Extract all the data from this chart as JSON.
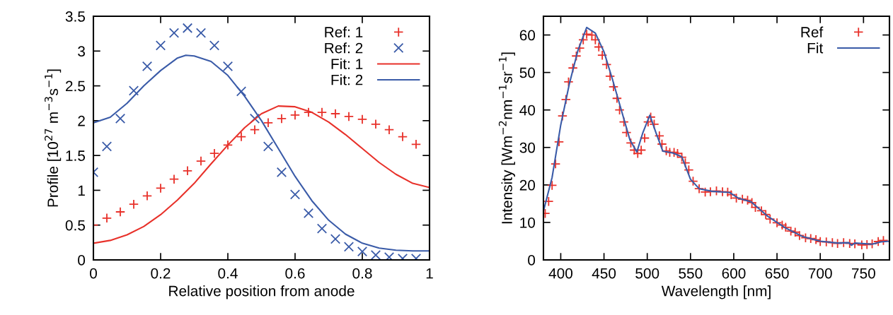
{
  "chart_data": [
    {
      "type": "scatter",
      "xlabel": "Relative position from anode",
      "ylabel": "Profile [10$^{27}$ m$^{−3}$s$^{−1}$]",
      "xlim": [
        0,
        1
      ],
      "xticks": [
        0,
        0.2,
        0.4,
        0.6,
        0.8,
        1
      ],
      "ylim": [
        0,
        3.5
      ],
      "yticks": [
        0,
        0.5,
        1,
        1.5,
        2,
        2.5,
        3,
        3.5
      ],
      "grid": false,
      "legend": "top right",
      "series": [
        {
          "name": "Ref: 1",
          "marker": "plus",
          "color": "#e8312a",
          "x": [
            0,
            0.04,
            0.08,
            0.12,
            0.16,
            0.2,
            0.24,
            0.28,
            0.32,
            0.36,
            0.4,
            0.44,
            0.48,
            0.52,
            0.56,
            0.6,
            0.64,
            0.68,
            0.72,
            0.76,
            0.8,
            0.84,
            0.88,
            0.92,
            0.96
          ],
          "values": [
            0.5,
            0.6,
            0.69,
            0.8,
            0.92,
            1.03,
            1.16,
            1.28,
            1.42,
            1.53,
            1.65,
            1.77,
            1.87,
            1.97,
            2.03,
            2.08,
            2.12,
            2.12,
            2.1,
            2.06,
            2.02,
            1.95,
            1.87,
            1.77,
            1.66
          ]
        },
        {
          "name": "Ref: 2",
          "marker": "cross",
          "color": "#3a5ba8",
          "x": [
            0,
            0.04,
            0.08,
            0.12,
            0.16,
            0.2,
            0.24,
            0.28,
            0.32,
            0.36,
            0.4,
            0.44,
            0.48,
            0.52,
            0.56,
            0.6,
            0.64,
            0.68,
            0.72,
            0.76,
            0.8,
            0.84,
            0.88,
            0.92,
            0.96
          ],
          "values": [
            1.26,
            1.63,
            2.03,
            2.43,
            2.78,
            3.08,
            3.26,
            3.33,
            3.26,
            3.08,
            2.78,
            2.42,
            2.03,
            1.63,
            1.26,
            0.94,
            0.67,
            0.45,
            0.3,
            0.19,
            0.12,
            0.07,
            0.04,
            0.02,
            0.02
          ]
        },
        {
          "name": "Fit: 1",
          "type": "line",
          "marker": "none",
          "line_style": "solid",
          "color": "#e8312a",
          "x": [
            0,
            0.05,
            0.1,
            0.15,
            0.2,
            0.25,
            0.3,
            0.35,
            0.4,
            0.45,
            0.5,
            0.55,
            0.6,
            0.65,
            0.7,
            0.75,
            0.8,
            0.85,
            0.9,
            0.95,
            1
          ],
          "values": [
            0.24,
            0.28,
            0.36,
            0.48,
            0.65,
            0.86,
            1.1,
            1.38,
            1.65,
            1.9,
            2.1,
            2.21,
            2.2,
            2.12,
            1.98,
            1.8,
            1.6,
            1.4,
            1.23,
            1.1,
            1.04
          ]
        },
        {
          "name": "Fit: 2",
          "type": "line",
          "marker": "none",
          "line_style": "solid",
          "color": "#3a5ba8",
          "x": [
            0,
            0.05,
            0.1,
            0.15,
            0.2,
            0.25,
            0.275,
            0.3,
            0.35,
            0.4,
            0.45,
            0.5,
            0.55,
            0.6,
            0.65,
            0.7,
            0.75,
            0.8,
            0.85,
            0.9,
            0.95,
            1
          ],
          "values": [
            1.97,
            2.05,
            2.25,
            2.5,
            2.72,
            2.9,
            2.94,
            2.93,
            2.85,
            2.65,
            2.35,
            2.0,
            1.6,
            1.2,
            0.85,
            0.57,
            0.37,
            0.24,
            0.17,
            0.14,
            0.13,
            0.13
          ]
        }
      ]
    },
    {
      "type": "scatter",
      "xlabel": "Wavelength [nm]",
      "ylabel": "Intensity [Wm$^{−2}$nm$^{−1}$sr$^{−1}$]",
      "xlim": [
        380,
        780
      ],
      "xticks": [
        400,
        450,
        500,
        550,
        600,
        650,
        700,
        750
      ],
      "ylim": [
        0,
        65
      ],
      "yticks": [
        0,
        10,
        20,
        30,
        40,
        50,
        60
      ],
      "grid": false,
      "legend": "top right",
      "series": [
        {
          "name": "Ref",
          "marker": "plus",
          "color": "#e8312a",
          "x": [
            382,
            386,
            390,
            394,
            398,
            402,
            406,
            409,
            414,
            418,
            422,
            426,
            430,
            436,
            440,
            444,
            448,
            453,
            457,
            461,
            465,
            468,
            473,
            476,
            481,
            485,
            489,
            493,
            497,
            501,
            504,
            508,
            514,
            517,
            522,
            526,
            531,
            535,
            540,
            544,
            548,
            553,
            560,
            567,
            573,
            580,
            587,
            593,
            597,
            603,
            610,
            616,
            621,
            625,
            632,
            637,
            642,
            650,
            656,
            660,
            666,
            671,
            676,
            683,
            689,
            695,
            700,
            707,
            714,
            720,
            727,
            734,
            740,
            748,
            754,
            760,
            767,
            773
          ],
          "values": [
            12.4,
            15.6,
            19.9,
            25.6,
            31.5,
            38.4,
            42.8,
            47.5,
            51.2,
            54.4,
            56.5,
            58.7,
            60.2,
            60,
            58.7,
            56.8,
            54.6,
            52.1,
            49,
            46.2,
            43.1,
            40,
            36.8,
            34,
            31.2,
            29.3,
            28.4,
            29.3,
            32.5,
            36.8,
            38.1,
            36.2,
            33.1,
            30.9,
            29.1,
            28.7,
            28.7,
            28.4,
            27.4,
            25.9,
            24,
            21,
            19,
            18.1,
            18.2,
            18.4,
            18.2,
            18.1,
            17.4,
            16.5,
            16.2,
            15.9,
            15.3,
            14,
            13.1,
            12.1,
            10.9,
            9.9,
            9.3,
            8.7,
            7.7,
            7.4,
            6.5,
            5.9,
            5.7,
            5.4,
            4.9,
            4.8,
            4.6,
            4.4,
            4.6,
            4.4,
            4.3,
            4,
            4.1,
            4.3,
            4.9,
            5.2
          ]
        },
        {
          "name": "Fit",
          "type": "line",
          "marker": "none",
          "line_style": "solid",
          "color": "#3a5ba8",
          "x": [
            380,
            390,
            400,
            410,
            420,
            430,
            440,
            450,
            460,
            470,
            480,
            488,
            495,
            503,
            510,
            518,
            530,
            540,
            550,
            560,
            575,
            595,
            605,
            620,
            640,
            660,
            680,
            700,
            720,
            733,
            736,
            740,
            760,
            770,
            780
          ],
          "values": [
            13,
            22,
            36,
            47,
            56,
            62,
            60.5,
            55.5,
            48,
            40,
            32,
            28.8,
            34,
            38.6,
            34,
            29,
            28.5,
            27.5,
            21.5,
            19,
            18.3,
            18,
            16.5,
            15.5,
            11.5,
            8.5,
            6.2,
            5,
            4.5,
            4.6,
            3.9,
            4.5,
            4.2,
            4.8,
            5
          ]
        }
      ]
    }
  ]
}
